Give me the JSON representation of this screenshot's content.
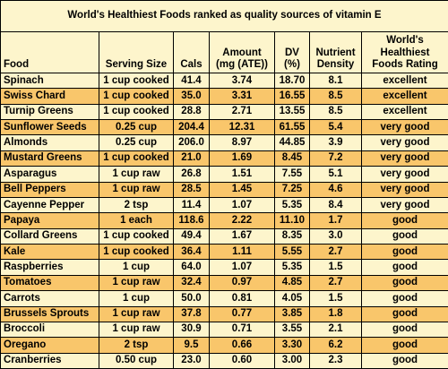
{
  "title": "World's Healthiest Foods ranked as quality sources of vitamin E",
  "table": {
    "header": [
      "Food",
      "Serving Size",
      "Cals",
      "Amount (mg (ATE))",
      "DV (%)",
      "Nutrient Density",
      "World's Healthiest Foods Rating"
    ],
    "rows": [
      [
        "Spinach",
        "1 cup cooked",
        "41.4",
        "3.74",
        "18.70",
        "8.1",
        "excellent"
      ],
      [
        "Swiss Chard",
        "1 cup cooked",
        "35.0",
        "3.31",
        "16.55",
        "8.5",
        "excellent"
      ],
      [
        "Turnip Greens",
        "1 cup cooked",
        "28.8",
        "2.71",
        "13.55",
        "8.5",
        "excellent"
      ],
      [
        "Sunflower Seeds",
        "0.25 cup",
        "204.4",
        "12.31",
        "61.55",
        "5.4",
        "very good"
      ],
      [
        "Almonds",
        "0.25 cup",
        "206.0",
        "8.97",
        "44.85",
        "3.9",
        "very good"
      ],
      [
        "Mustard Greens",
        "1 cup cooked",
        "21.0",
        "1.69",
        "8.45",
        "7.2",
        "very good"
      ],
      [
        "Asparagus",
        "1 cup raw",
        "26.8",
        "1.51",
        "7.55",
        "5.1",
        "very good"
      ],
      [
        "Bell Peppers",
        "1 cup raw",
        "28.5",
        "1.45",
        "7.25",
        "4.6",
        "very good"
      ],
      [
        "Cayenne Pepper",
        "2 tsp",
        "11.4",
        "1.07",
        "5.35",
        "8.4",
        "very good"
      ],
      [
        "Papaya",
        "1 each",
        "118.6",
        "2.22",
        "11.10",
        "1.7",
        "good"
      ],
      [
        "Collard Greens",
        "1 cup cooked",
        "49.4",
        "1.67",
        "8.35",
        "3.0",
        "good"
      ],
      [
        "Kale",
        "1 cup cooked",
        "36.4",
        "1.11",
        "5.55",
        "2.7",
        "good"
      ],
      [
        "Raspberries",
        "1 cup",
        "64.0",
        "1.07",
        "5.35",
        "1.5",
        "good"
      ],
      [
        "Tomatoes",
        "1 cup raw",
        "32.4",
        "0.97",
        "4.85",
        "2.7",
        "good"
      ],
      [
        "Carrots",
        "1 cup",
        "50.0",
        "0.81",
        "4.05",
        "1.5",
        "good"
      ],
      [
        "Brussels Sprouts",
        "1 cup raw",
        "37.8",
        "0.77",
        "3.85",
        "1.8",
        "good"
      ],
      [
        "Broccoli",
        "1 cup raw",
        "30.9",
        "0.71",
        "3.55",
        "2.1",
        "good"
      ],
      [
        "Oregano",
        "2 tsp",
        "9.5",
        "0.66",
        "3.30",
        "6.2",
        "good"
      ],
      [
        "Cranberries",
        "0.50 cup",
        "23.0",
        "0.60",
        "3.00",
        "2.3",
        "good"
      ]
    ]
  }
}
